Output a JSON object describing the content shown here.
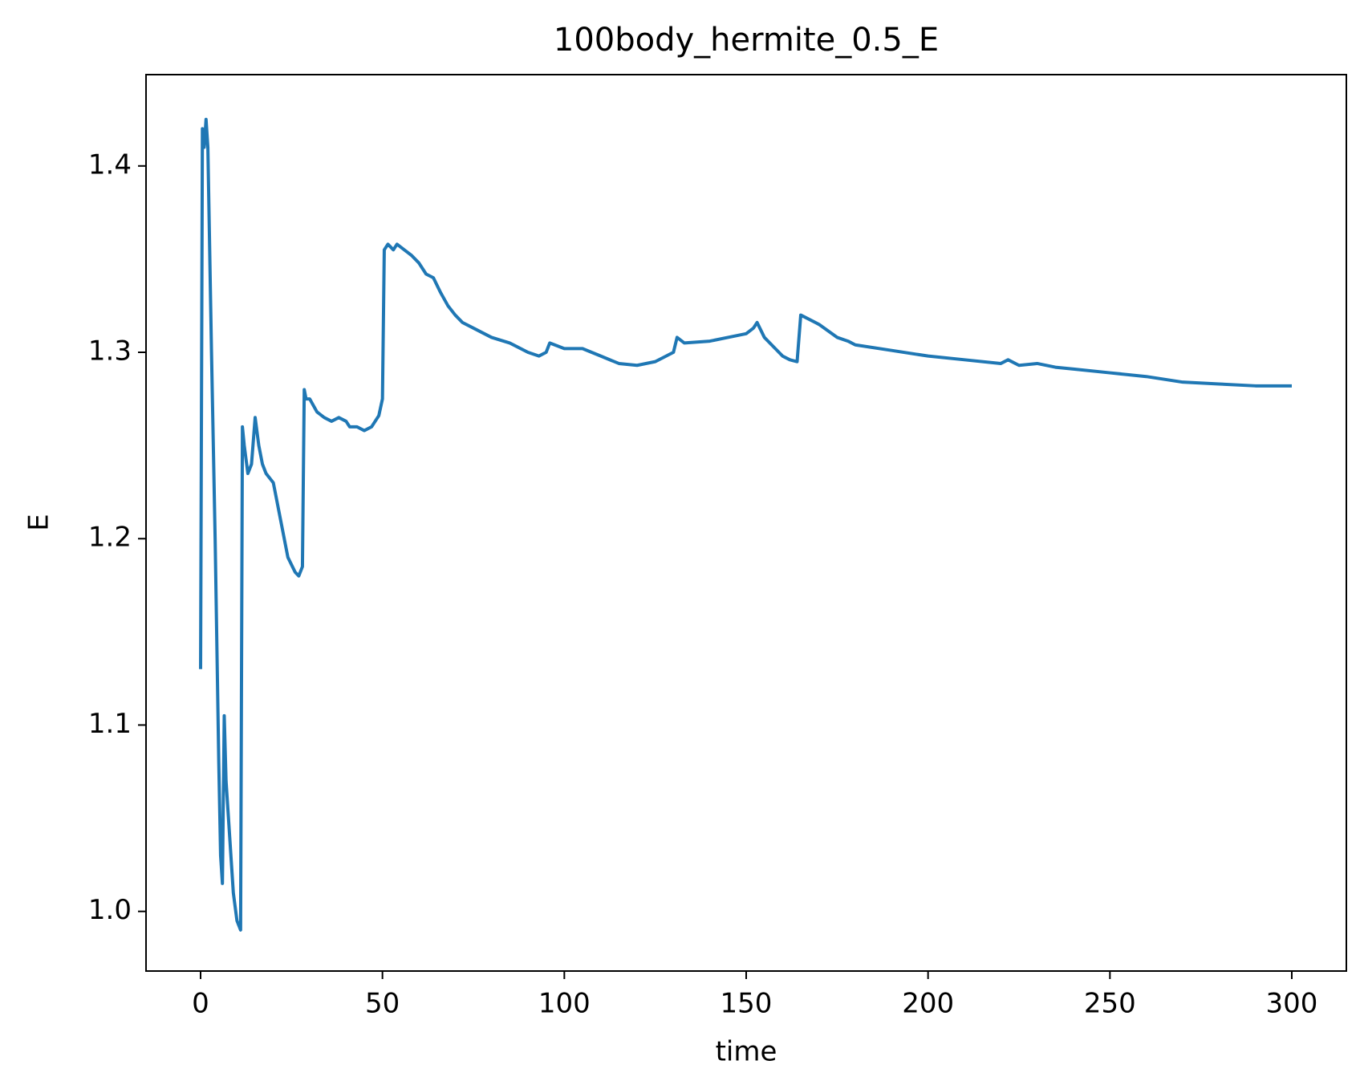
{
  "chart_data": {
    "type": "line",
    "title": "100body_hermite_0.5_E",
    "x_label": "time",
    "y_label": "E",
    "x": [
      0,
      0.5,
      1,
      1.5,
      2,
      3,
      4,
      5,
      5.5,
      6,
      6.5,
      7,
      8,
      9,
      10,
      11,
      11.5,
      12,
      13,
      14,
      15,
      16,
      17,
      18,
      20,
      21,
      22,
      23,
      24,
      26,
      27,
      28,
      28.5,
      29,
      30,
      32,
      34,
      36,
      38,
      40,
      41,
      43,
      45,
      47,
      49,
      50,
      50.5,
      51.5,
      53,
      54,
      56,
      58,
      60,
      62,
      64,
      66,
      68,
      70,
      72,
      75,
      78,
      80,
      85,
      90,
      93,
      95,
      96,
      100,
      105,
      110,
      115,
      120,
      125,
      127,
      130,
      131,
      133,
      140,
      145,
      150,
      152,
      153,
      155,
      158,
      160,
      162,
      164,
      165,
      170,
      175,
      178,
      180,
      190,
      200,
      210,
      220,
      222,
      225,
      230,
      235,
      240,
      250,
      260,
      270,
      280,
      290,
      300
    ],
    "series": [
      {
        "name": "E",
        "color": "#1f77b4",
        "values": [
          1.13,
          1.42,
          1.41,
          1.425,
          1.41,
          1.3,
          1.2,
          1.08,
          1.03,
          1.015,
          1.105,
          1.07,
          1.04,
          1.01,
          0.995,
          0.99,
          1.26,
          1.25,
          1.235,
          1.24,
          1.265,
          1.25,
          1.24,
          1.235,
          1.23,
          1.22,
          1.21,
          1.2,
          1.19,
          1.182,
          1.18,
          1.185,
          1.28,
          1.275,
          1.275,
          1.268,
          1.265,
          1.263,
          1.265,
          1.263,
          1.26,
          1.26,
          1.258,
          1.26,
          1.266,
          1.275,
          1.355,
          1.358,
          1.355,
          1.358,
          1.355,
          1.352,
          1.348,
          1.342,
          1.34,
          1.332,
          1.325,
          1.32,
          1.316,
          1.313,
          1.31,
          1.308,
          1.305,
          1.3,
          1.298,
          1.3,
          1.305,
          1.302,
          1.302,
          1.298,
          1.294,
          1.293,
          1.295,
          1.297,
          1.3,
          1.308,
          1.305,
          1.306,
          1.308,
          1.31,
          1.313,
          1.316,
          1.308,
          1.302,
          1.298,
          1.296,
          1.295,
          1.32,
          1.315,
          1.308,
          1.306,
          1.304,
          1.301,
          1.298,
          1.296,
          1.294,
          1.296,
          1.293,
          1.294,
          1.292,
          1.291,
          1.289,
          1.287,
          1.284,
          1.283,
          1.282,
          1.282
        ]
      }
    ],
    "xlim": [
      -15,
      315
    ],
    "ylim": [
      0.968,
      1.449
    ],
    "xticks": [
      0,
      50,
      100,
      150,
      200,
      250,
      300
    ],
    "yticks": [
      {
        "value": 1,
        "label": "1.0"
      },
      1.1,
      1.2,
      1.3,
      1.4
    ]
  }
}
